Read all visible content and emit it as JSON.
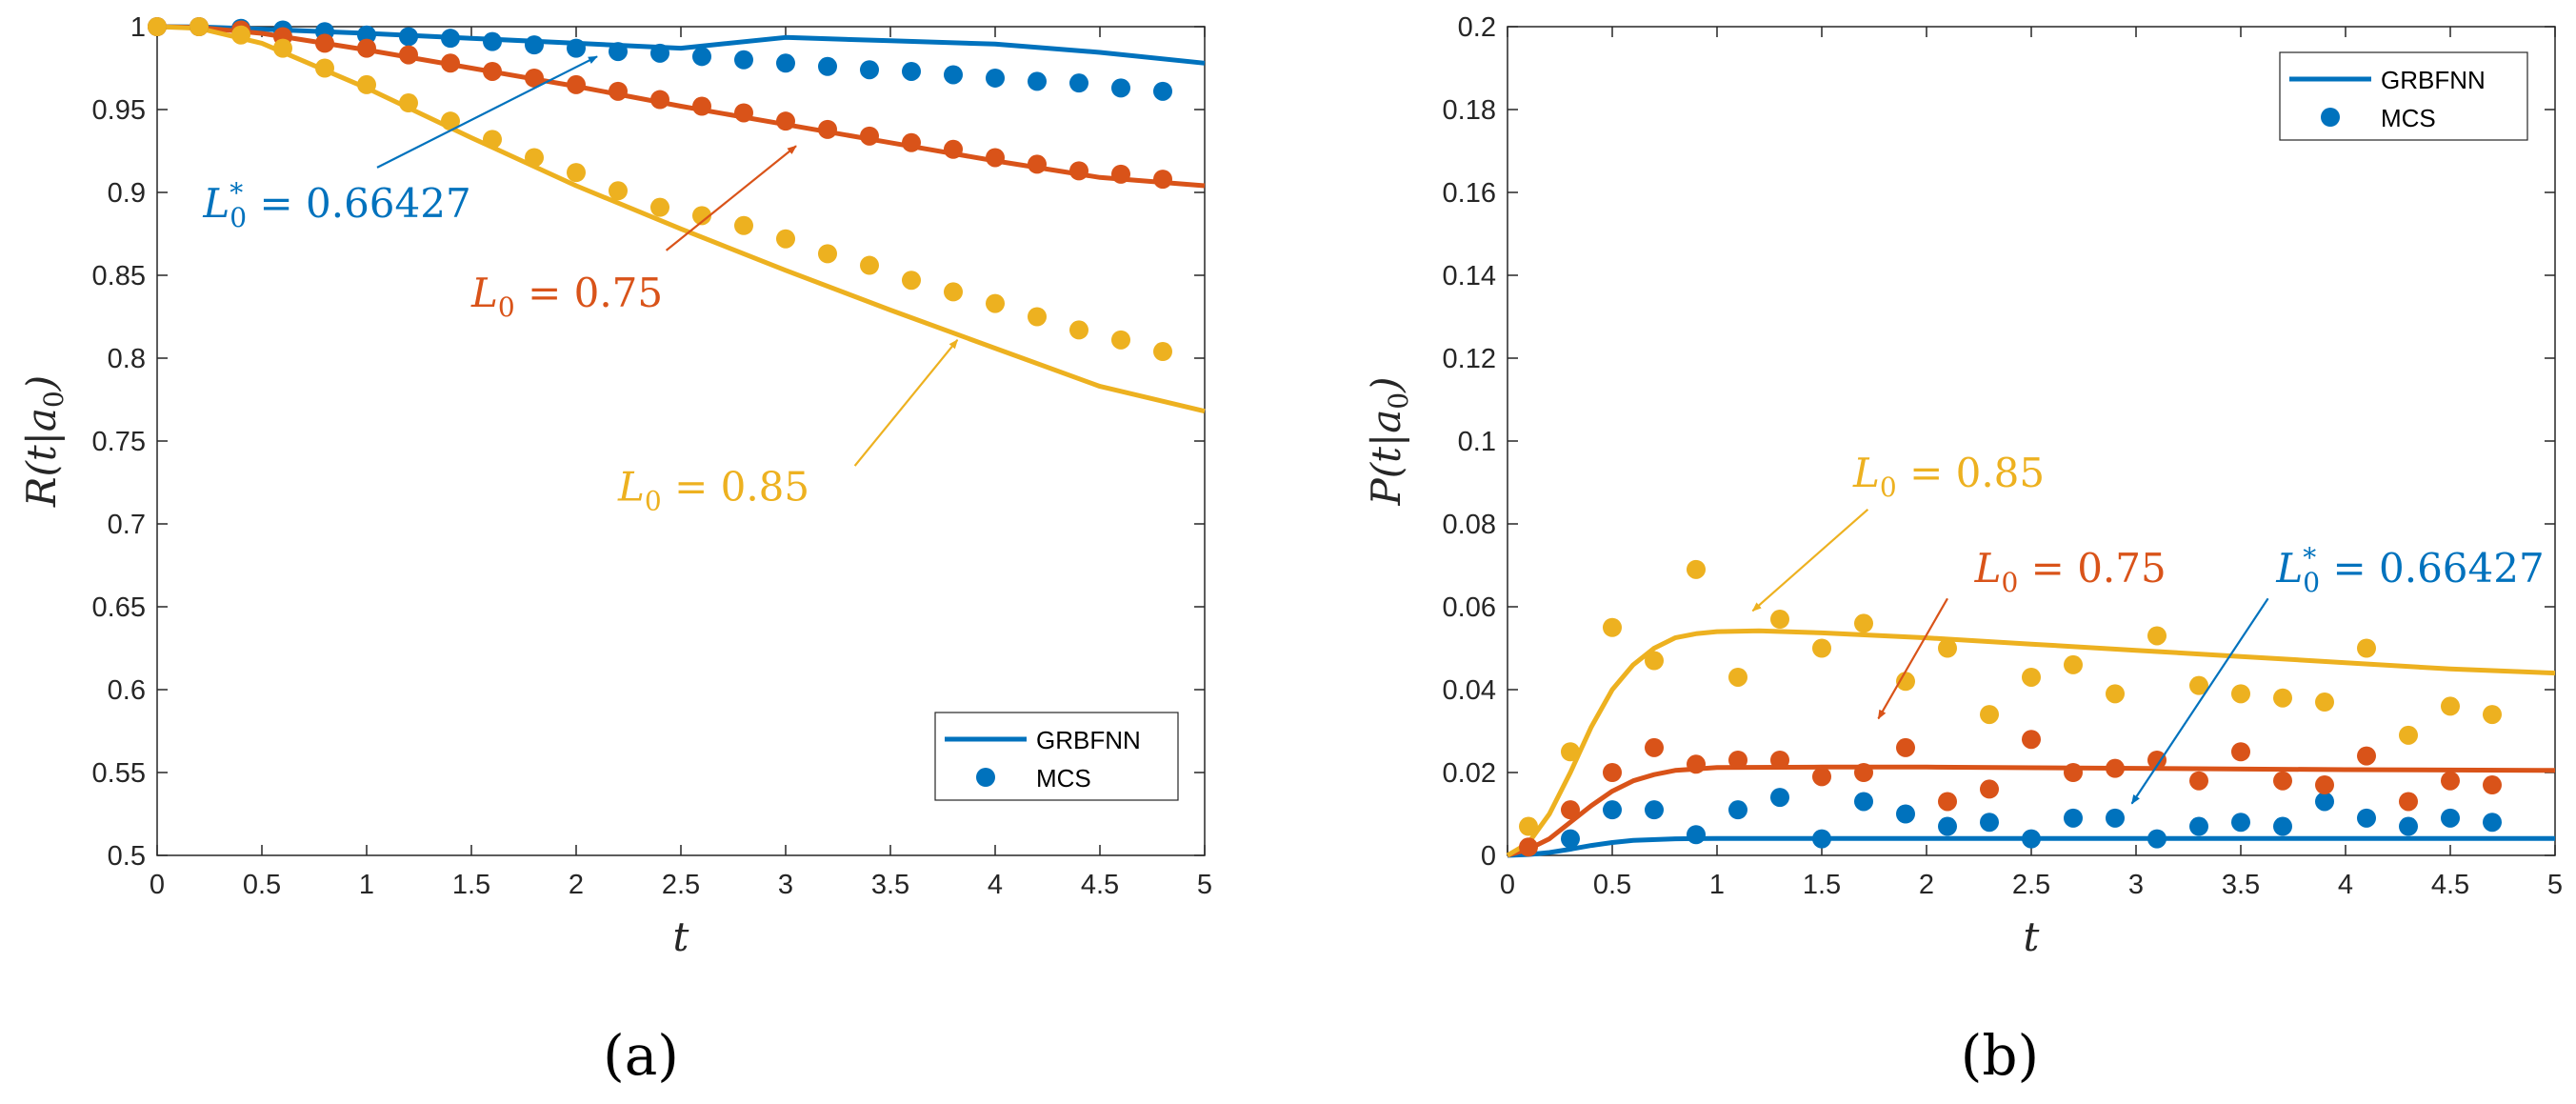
{
  "chart_data": [
    {
      "type": "line",
      "panel_label": "(a)",
      "xlabel": "t",
      "ylabel": "R(t|a0)",
      "xlim": [
        0,
        5
      ],
      "ylim": [
        0.5,
        1
      ],
      "xticks": [
        0,
        0.5,
        1,
        1.5,
        2,
        2.5,
        3,
        3.5,
        4,
        4.5,
        5
      ],
      "xtick_labels": [
        "0",
        "0.5",
        "1",
        "1.5",
        "2",
        "2.5",
        "3",
        "3.5",
        "4",
        "4.5",
        "5"
      ],
      "yticks": [
        0.5,
        0.55,
        0.6,
        0.65,
        0.7,
        0.75,
        0.8,
        0.85,
        0.9,
        0.95,
        1
      ],
      "ytick_labels": [
        "0.5",
        "0.55",
        "0.6",
        "0.65",
        "0.7",
        "0.75",
        "0.8",
        "0.85",
        "0.9",
        "0.95",
        "1"
      ],
      "legend": {
        "position": "bottom-right",
        "entries": [
          "GRBFNN",
          "MCS"
        ]
      },
      "series": [
        {
          "name": "L0* = 0.66427",
          "color": "#0072BD",
          "line_x": [
            0,
            0.2,
            0.5,
            1,
            1.5,
            2,
            2.5,
            3,
            3.5,
            4,
            4.5,
            5
          ],
          "line_y": [
            1,
            0.9998,
            0.9985,
            0.996,
            0.993,
            0.99,
            0.987,
            0.9935,
            0.9915,
            0.9895,
            0.9845,
            0.978
          ],
          "mcs_x": [
            0,
            0.2,
            0.4,
            0.6,
            0.8,
            1.0,
            1.2,
            1.4,
            1.6,
            1.8,
            2.0,
            2.2,
            2.4,
            2.6,
            2.8,
            3.0,
            3.2,
            3.4,
            3.6,
            3.8,
            4.0,
            4.2,
            4.4,
            4.6,
            4.8
          ],
          "mcs_y": [
            1,
            1,
            0.999,
            0.998,
            0.997,
            0.995,
            0.994,
            0.993,
            0.991,
            0.989,
            0.987,
            0.985,
            0.984,
            0.982,
            0.98,
            0.978,
            0.976,
            0.974,
            0.973,
            0.971,
            0.969,
            0.967,
            0.966,
            0.963,
            0.961
          ]
        },
        {
          "name": "L0 = 0.75",
          "color": "#D95319",
          "line_x": [
            0,
            0.2,
            0.5,
            1,
            1.5,
            2,
            2.5,
            3,
            3.5,
            4,
            4.5,
            5
          ],
          "line_y": [
            1,
            0.9995,
            0.996,
            0.986,
            0.975,
            0.964,
            0.952,
            0.941,
            0.93,
            0.919,
            0.909,
            0.904
          ],
          "mcs_x": [
            0,
            0.2,
            0.4,
            0.6,
            0.8,
            1.0,
            1.2,
            1.4,
            1.6,
            1.8,
            2.0,
            2.2,
            2.4,
            2.6,
            2.8,
            3.0,
            3.2,
            3.4,
            3.6,
            3.8,
            4.0,
            4.2,
            4.4,
            4.6,
            4.8
          ],
          "mcs_y": [
            1,
            1,
            0.998,
            0.994,
            0.99,
            0.987,
            0.983,
            0.978,
            0.973,
            0.969,
            0.965,
            0.961,
            0.956,
            0.952,
            0.948,
            0.943,
            0.938,
            0.934,
            0.93,
            0.926,
            0.921,
            0.917,
            0.913,
            0.911,
            0.908
          ]
        },
        {
          "name": "L0 = 0.85",
          "color": "#EDB120",
          "line_x": [
            0,
            0.2,
            0.5,
            1,
            1.5,
            2,
            2.5,
            3,
            3.5,
            4,
            4.5,
            5
          ],
          "line_y": [
            1,
            0.999,
            0.99,
            0.963,
            0.933,
            0.904,
            0.878,
            0.853,
            0.829,
            0.806,
            0.783,
            0.768
          ],
          "mcs_x": [
            0,
            0.2,
            0.4,
            0.6,
            0.8,
            1.0,
            1.2,
            1.4,
            1.6,
            1.8,
            2.0,
            2.2,
            2.4,
            2.6,
            2.8,
            3.0,
            3.2,
            3.4,
            3.6,
            3.8,
            4.0,
            4.2,
            4.4,
            4.6,
            4.8
          ],
          "mcs_y": [
            1,
            1,
            0.995,
            0.987,
            0.975,
            0.965,
            0.954,
            0.943,
            0.932,
            0.921,
            0.912,
            0.901,
            0.891,
            0.886,
            0.88,
            0.872,
            0.863,
            0.856,
            0.847,
            0.84,
            0.833,
            0.825,
            0.817,
            0.811,
            0.804
          ]
        }
      ],
      "annotations": [
        {
          "sym": "L",
          "sub": "0",
          "sup": "*",
          "rest": " = 0.66427",
          "color": "#0072BD",
          "text_at": [
            0.22,
            0.885
          ],
          "arrow_from": [
            1.05,
            0.915
          ],
          "arrow_to": [
            2.1,
            0.982
          ]
        },
        {
          "sym": "L",
          "sub": "0",
          "sup": "",
          "rest": " = 0.75",
          "color": "#D95319",
          "text_at": [
            1.5,
            0.831
          ],
          "arrow_from": [
            2.43,
            0.865
          ],
          "arrow_to": [
            3.05,
            0.928
          ]
        },
        {
          "sym": "L",
          "sub": "0",
          "sup": "",
          "rest": " = 0.85",
          "color": "#EDB120",
          "text_at": [
            2.2,
            0.714
          ],
          "arrow_from": [
            3.33,
            0.735
          ],
          "arrow_to": [
            3.82,
            0.811
          ]
        }
      ]
    },
    {
      "type": "line",
      "panel_label": "(b)",
      "xlabel": "t",
      "ylabel": "P(t|a0)",
      "xlim": [
        0,
        5
      ],
      "ylim": [
        0,
        0.2
      ],
      "xticks": [
        0,
        0.5,
        1,
        1.5,
        2,
        2.5,
        3,
        3.5,
        4,
        4.5,
        5
      ],
      "xtick_labels": [
        "0",
        "0.5",
        "1",
        "1.5",
        "2",
        "2.5",
        "3",
        "3.5",
        "4",
        "4.5",
        "5"
      ],
      "yticks": [
        0,
        0.02,
        0.04,
        0.06,
        0.08,
        0.1,
        0.12,
        0.14,
        0.16,
        0.18,
        0.2
      ],
      "ytick_labels": [
        "0",
        "0.02",
        "0.04",
        "0.06",
        "0.08",
        "0.1",
        "0.12",
        "0.14",
        "0.16",
        "0.18",
        "0.2"
      ],
      "legend": {
        "position": "top-right",
        "entries": [
          "GRBFNN",
          "MCS"
        ]
      },
      "series": [
        {
          "name": "L0* = 0.66427",
          "color": "#0072BD",
          "line_x": [
            0,
            0.1,
            0.2,
            0.3,
            0.4,
            0.5,
            0.6,
            0.8,
            1.0,
            1.5,
            2,
            3,
            4,
            5
          ],
          "line_y": [
            0,
            0.0002,
            0.0007,
            0.0015,
            0.0024,
            0.0031,
            0.0036,
            0.004,
            0.0041,
            0.0041,
            0.0041,
            0.0041,
            0.0041,
            0.0041
          ],
          "mcs_x": [
            0.3,
            0.5,
            0.7,
            0.9,
            1.1,
            1.3,
            1.5,
            1.7,
            1.9,
            2.1,
            2.3,
            2.5,
            2.7,
            2.9,
            3.1,
            3.3,
            3.5,
            3.7,
            3.9,
            4.1,
            4.3,
            4.5,
            4.7
          ],
          "mcs_y": [
            0.004,
            0.011,
            0.011,
            0.005,
            0.011,
            0.014,
            0.004,
            0.013,
            0.01,
            0.007,
            0.008,
            0.004,
            0.009,
            0.009,
            0.004,
            0.007,
            0.008,
            0.007,
            0.013,
            0.009,
            0.007,
            0.009,
            0.008
          ]
        },
        {
          "name": "L0 = 0.75",
          "color": "#D95319",
          "line_x": [
            0,
            0.1,
            0.2,
            0.3,
            0.4,
            0.5,
            0.6,
            0.7,
            0.8,
            1.0,
            1.5,
            2,
            3,
            4,
            5
          ],
          "line_y": [
            0,
            0.0015,
            0.004,
            0.008,
            0.012,
            0.0155,
            0.018,
            0.0195,
            0.0205,
            0.0212,
            0.0213,
            0.0213,
            0.021,
            0.0207,
            0.0205
          ],
          "mcs_x": [
            0.1,
            0.3,
            0.5,
            0.7,
            0.9,
            1.1,
            1.3,
            1.5,
            1.7,
            1.9,
            2.1,
            2.3,
            2.5,
            2.7,
            2.9,
            3.1,
            3.3,
            3.5,
            3.7,
            3.9,
            4.1,
            4.3,
            4.5,
            4.7
          ],
          "mcs_y": [
            0.002,
            0.011,
            0.02,
            0.026,
            0.022,
            0.023,
            0.023,
            0.019,
            0.02,
            0.026,
            0.013,
            0.016,
            0.028,
            0.02,
            0.021,
            0.023,
            0.018,
            0.025,
            0.018,
            0.017,
            0.024,
            0.013,
            0.018,
            0.017
          ]
        },
        {
          "name": "L0 = 0.85",
          "color": "#EDB120",
          "line_x": [
            0,
            0.1,
            0.2,
            0.3,
            0.4,
            0.5,
            0.6,
            0.7,
            0.8,
            0.9,
            1.0,
            1.2,
            1.5,
            2,
            2.5,
            3,
            3.5,
            4,
            4.5,
            5
          ],
          "line_y": [
            0,
            0.003,
            0.01,
            0.02,
            0.031,
            0.04,
            0.046,
            0.05,
            0.0525,
            0.0535,
            0.054,
            0.0542,
            0.0537,
            0.0525,
            0.051,
            0.0495,
            0.048,
            0.0465,
            0.045,
            0.044
          ],
          "mcs_x": [
            0.1,
            0.3,
            0.5,
            0.7,
            0.9,
            1.1,
            1.3,
            1.5,
            1.7,
            1.9,
            2.1,
            2.3,
            2.5,
            2.7,
            2.9,
            3.1,
            3.3,
            3.5,
            3.7,
            3.9,
            4.1,
            4.3,
            4.5,
            4.7
          ],
          "mcs_y": [
            0.007,
            0.025,
            0.055,
            0.047,
            0.069,
            0.043,
            0.057,
            0.05,
            0.056,
            0.042,
            0.05,
            0.034,
            0.043,
            0.046,
            0.039,
            0.053,
            0.041,
            0.039,
            0.038,
            0.037,
            0.05,
            0.029,
            0.036,
            0.034
          ]
        }
      ],
      "annotations": [
        {
          "sym": "L",
          "sub": "0",
          "sup": "",
          "rest": " = 0.85",
          "color": "#EDB120",
          "text_at": [
            1.65,
            0.089
          ],
          "arrow_from": [
            1.72,
            0.0835
          ],
          "arrow_to": [
            1.17,
            0.059
          ]
        },
        {
          "sym": "L",
          "sub": "0",
          "sup": "",
          "rest": " = 0.75",
          "color": "#D95319",
          "text_at": [
            2.23,
            0.066
          ],
          "arrow_from": [
            2.1,
            0.062
          ],
          "arrow_to": [
            1.77,
            0.033
          ]
        },
        {
          "sym": "L",
          "sub": "0",
          "sup": "*",
          "rest": " = 0.66427",
          "color": "#0072BD",
          "text_at": [
            3.67,
            0.066
          ],
          "arrow_from": [
            3.63,
            0.062
          ],
          "arrow_to": [
            2.98,
            0.0125
          ]
        }
      ]
    }
  ]
}
